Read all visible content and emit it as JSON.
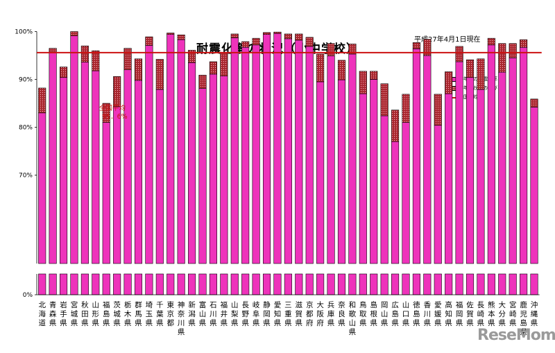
{
  "title": "耐震化率の状況（小中学校）",
  "date_note": "平成27年4月1日現在",
  "watermark": "ReseMom",
  "colors": {
    "base": "#ee33bb",
    "growth": "#a8262e",
    "average_line": "#cc1111"
  },
  "chart_data": {
    "type": "bar",
    "stacked": true,
    "broken_axis": true,
    "ylim": [
      0,
      100
    ],
    "y_ticks": [
      {
        "value": 0,
        "label": "0%"
      },
      {
        "value": 70,
        "label": "70%"
      },
      {
        "value": 80,
        "label": "80%"
      },
      {
        "value": 90,
        "label": "90%"
      },
      {
        "value": 100,
        "label": "100%"
      }
    ],
    "grid": false,
    "legend_position": "top-right",
    "legend": [
      "昨年度の耐震化率",
      "昨年度からの伸び",
      "全国平均"
    ],
    "average": {
      "value": 95.6,
      "label_line1": "全国平均",
      "label_line2": "95．6%"
    },
    "categories": [
      "北海道",
      "青森県",
      "岩手県",
      "宮城県",
      "秋田県",
      "山形県",
      "福島県",
      "茨城県",
      "栃木県",
      "群馬県",
      "埼玉県",
      "千葉県",
      "東京都",
      "神奈川県",
      "新潟県",
      "富山県",
      "石川県",
      "福井県",
      "山梨県",
      "長野県",
      "岐阜県",
      "静岡県",
      "愛知県",
      "三重県",
      "滋賀県",
      "京都府",
      "大阪府",
      "兵庫県",
      "奈良県",
      "和歌山県",
      "鳥取県",
      "島根県",
      "岡山県",
      "広島県",
      "山口県",
      "徳島県",
      "香川県",
      "愛媛県",
      "高知県",
      "福岡県",
      "佐賀県",
      "長崎県",
      "熊本県",
      "大分県",
      "宮崎県",
      "鹿児島県",
      "沖縄県"
    ],
    "series": [
      {
        "name": "昨年度の耐震化率",
        "values": [
          83.0,
          95.7,
          90.4,
          99.1,
          93.6,
          91.8,
          81.0,
          84.3,
          92.0,
          89.8,
          97.1,
          87.9,
          99.4,
          98.3,
          93.5,
          88.1,
          91.1,
          90.7,
          98.7,
          96.7,
          97.2,
          99.4,
          99.6,
          98.5,
          98.2,
          96.9,
          89.5,
          94.9,
          89.9,
          95.3,
          87.0,
          90.0,
          82.4,
          77.0,
          81.0,
          96.4,
          95.0,
          80.4,
          87.0,
          93.7,
          90.4,
          87.9,
          97.2,
          91.5,
          94.5,
          96.7,
          84.2
        ]
      },
      {
        "name": "昨年度からの伸び",
        "values": [
          5.2,
          0.8,
          2.2,
          0.9,
          3.4,
          4.2,
          4.0,
          6.3,
          4.5,
          4.5,
          1.8,
          6.3,
          0.3,
          1.0,
          2.6,
          2.8,
          2.6,
          4.9,
          0.8,
          1.2,
          1.4,
          0.4,
          0.3,
          1.0,
          1.3,
          1.9,
          5.8,
          2.6,
          4.1,
          2.1,
          4.7,
          1.7,
          6.7,
          6.6,
          5.9,
          1.3,
          3.4,
          6.5,
          4.6,
          3.2,
          3.7,
          6.4,
          1.4,
          6.0,
          3.0,
          1.6,
          1.7
        ]
      }
    ]
  }
}
